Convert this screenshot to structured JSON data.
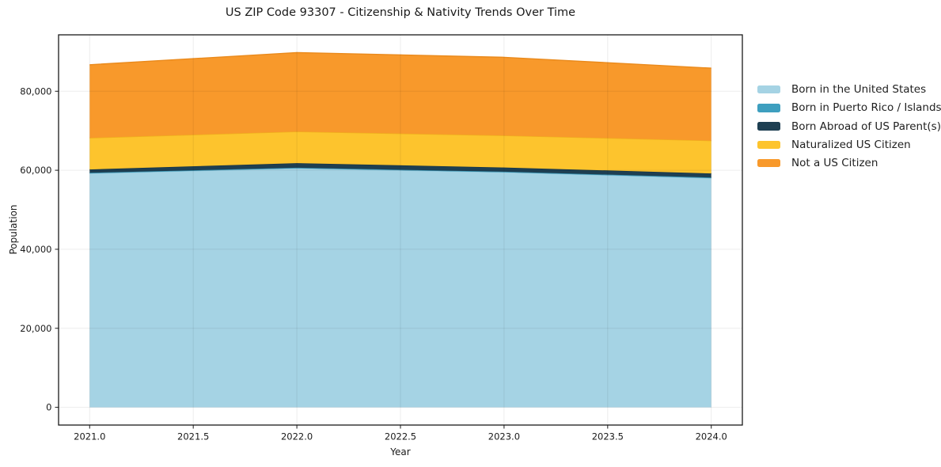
{
  "chart_data": {
    "type": "area",
    "stacked": true,
    "title": "US ZIP Code 93307 - Citizenship & Nativity Trends Over Time",
    "xlabel": "Year",
    "ylabel": "Population",
    "x": [
      2021,
      2022,
      2023,
      2024
    ],
    "series": [
      {
        "name": "Born in the United States",
        "color": "#A5D3E4",
        "edge_color": "#8EC6DB",
        "values": [
          59200,
          60500,
          59500,
          58000
        ]
      },
      {
        "name": "Born in Puerto Rico / Islands",
        "color": "#3E9FBF",
        "edge_color": "#3790AE",
        "values": [
          150,
          150,
          150,
          150
        ]
      },
      {
        "name": "Born Abroad of US Parent(s)",
        "color": "#1E3F52",
        "edge_color": "#183546",
        "values": [
          850,
          1150,
          1050,
          1050
        ]
      },
      {
        "name": "Naturalized US Citizen",
        "color": "#FDC42D",
        "edge_color": "#EFB01C",
        "values": [
          8000,
          8000,
          8100,
          8300
        ]
      },
      {
        "name": "Not a US Citizen",
        "color": "#F8992B",
        "edge_color": "#EA8A1C",
        "values": [
          18500,
          20000,
          19800,
          18350
        ]
      }
    ],
    "xlim": [
      2020.85,
      2024.15
    ],
    "ylim": [
      -4490,
      94280
    ],
    "x_ticks": [
      2021.0,
      2021.5,
      2022.0,
      2022.5,
      2023.0,
      2023.5,
      2024.0
    ],
    "x_tick_labels": [
      "2021.0",
      "2021.5",
      "2022.0",
      "2022.5",
      "2023.0",
      "2023.5",
      "2024.0"
    ],
    "y_ticks": [
      0,
      20000,
      40000,
      60000,
      80000
    ],
    "y_tick_labels": [
      "0",
      "20,000",
      "40,000",
      "60,000",
      "80,000"
    ],
    "grid": true,
    "legend_position": "right-outside",
    "axis_color": "#1a1a1a",
    "grid_color": "#000000",
    "grid_opacity": 0.075,
    "background": "#ffffff"
  }
}
